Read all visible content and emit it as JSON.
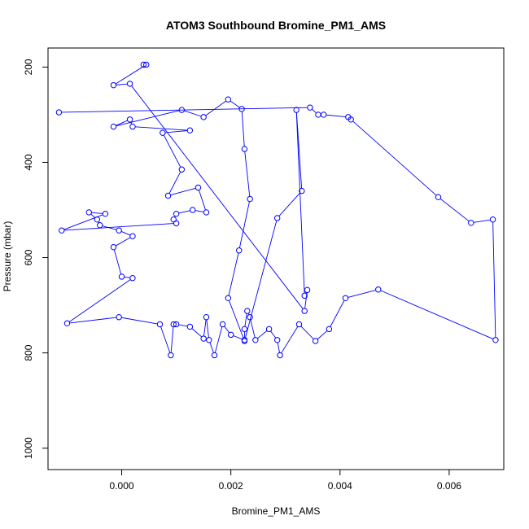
{
  "chart_data": {
    "type": "line",
    "title": "ATOM3 Southbound Bromine_PM1_AMS",
    "xlabel": "Bromine_PM1_AMS",
    "ylabel": "Pressure (mbar)",
    "xlim": [
      -0.00135,
      0.007
    ],
    "ylim": [
      1045,
      160
    ],
    "y_inverted": true,
    "xticks": [
      0.0,
      0.002,
      0.004,
      0.006
    ],
    "xtick_labels": [
      "0.000",
      "0.002",
      "0.004",
      "0.006"
    ],
    "yticks": [
      200,
      400,
      600,
      800,
      1000
    ],
    "ytick_labels": [
      "200",
      "400",
      "600",
      "800",
      "1000"
    ],
    "grid": false,
    "series": [
      {
        "color": "#0000ff",
        "marker": "open-circle",
        "points": [
          [
            -0.00115,
            295
          ],
          [
            0.00345,
            285
          ],
          [
            0.0036,
            300
          ],
          [
            0.0037,
            300
          ],
          [
            0.00415,
            305
          ],
          [
            0.0042,
            310
          ],
          [
            0.0058,
            473
          ],
          [
            0.0064,
            527
          ],
          [
            0.0068,
            520
          ],
          [
            0.00685,
            773
          ],
          [
            0.0047,
            667
          ],
          [
            0.0041,
            685
          ],
          [
            0.0038,
            750
          ],
          [
            0.00355,
            775
          ],
          [
            0.00325,
            740
          ],
          [
            0.0029,
            805
          ],
          [
            0.00285,
            773
          ],
          [
            0.0027,
            750
          ],
          [
            0.00245,
            773
          ],
          [
            0.00235,
            725
          ],
          [
            0.0023,
            712
          ],
          [
            0.00225,
            750
          ],
          [
            0.00225,
            773
          ],
          [
            0.002,
            762
          ],
          [
            0.00185,
            740
          ],
          [
            0.0017,
            805
          ],
          [
            0.0016,
            773
          ],
          [
            0.00155,
            725
          ],
          [
            0.0015,
            770
          ],
          [
            0.00125,
            745
          ],
          [
            0.001,
            740
          ],
          [
            0.00095,
            740
          ],
          [
            0.0009,
            805
          ],
          [
            0.0007,
            740
          ],
          [
            -5e-05,
            725
          ],
          [
            -0.001,
            738
          ],
          [
            0.0002,
            643
          ],
          [
            0.0,
            640
          ],
          [
            -0.00015,
            578
          ],
          [
            0.0002,
            555
          ],
          [
            -5e-05,
            543
          ],
          [
            -0.0004,
            532
          ],
          [
            -0.00045,
            520
          ],
          [
            -0.0006,
            505
          ],
          [
            -0.0003,
            508
          ],
          [
            -0.0011,
            543
          ],
          [
            0.001,
            528
          ],
          [
            0.00095,
            520
          ],
          [
            0.001,
            508
          ],
          [
            0.0013,
            500
          ],
          [
            0.00155,
            505
          ],
          [
            0.0014,
            453
          ],
          [
            0.00085,
            470
          ],
          [
            0.0011,
            415
          ],
          [
            0.00075,
            338
          ],
          [
            0.00125,
            333
          ],
          [
            0.0002,
            325
          ],
          [
            0.00015,
            310
          ],
          [
            -0.00015,
            325
          ],
          [
            0.0011,
            290
          ],
          [
            0.0015,
            305
          ],
          [
            0.00195,
            268
          ],
          [
            0.0022,
            288
          ],
          [
            0.00225,
            372
          ],
          [
            0.00235,
            477
          ],
          [
            0.00215,
            585
          ],
          [
            0.00195,
            685
          ],
          [
            0.00225,
            775
          ],
          [
            0.00285,
            517
          ],
          [
            0.0033,
            460
          ],
          [
            0.0032,
            290
          ],
          [
            0.00335,
            680
          ],
          [
            0.0034,
            668
          ],
          [
            0.00335,
            712
          ],
          [
            0.00015,
            235
          ],
          [
            -0.00015,
            238
          ],
          [
            0.00045,
            195
          ],
          [
            0.0004,
            195
          ]
        ]
      }
    ]
  }
}
